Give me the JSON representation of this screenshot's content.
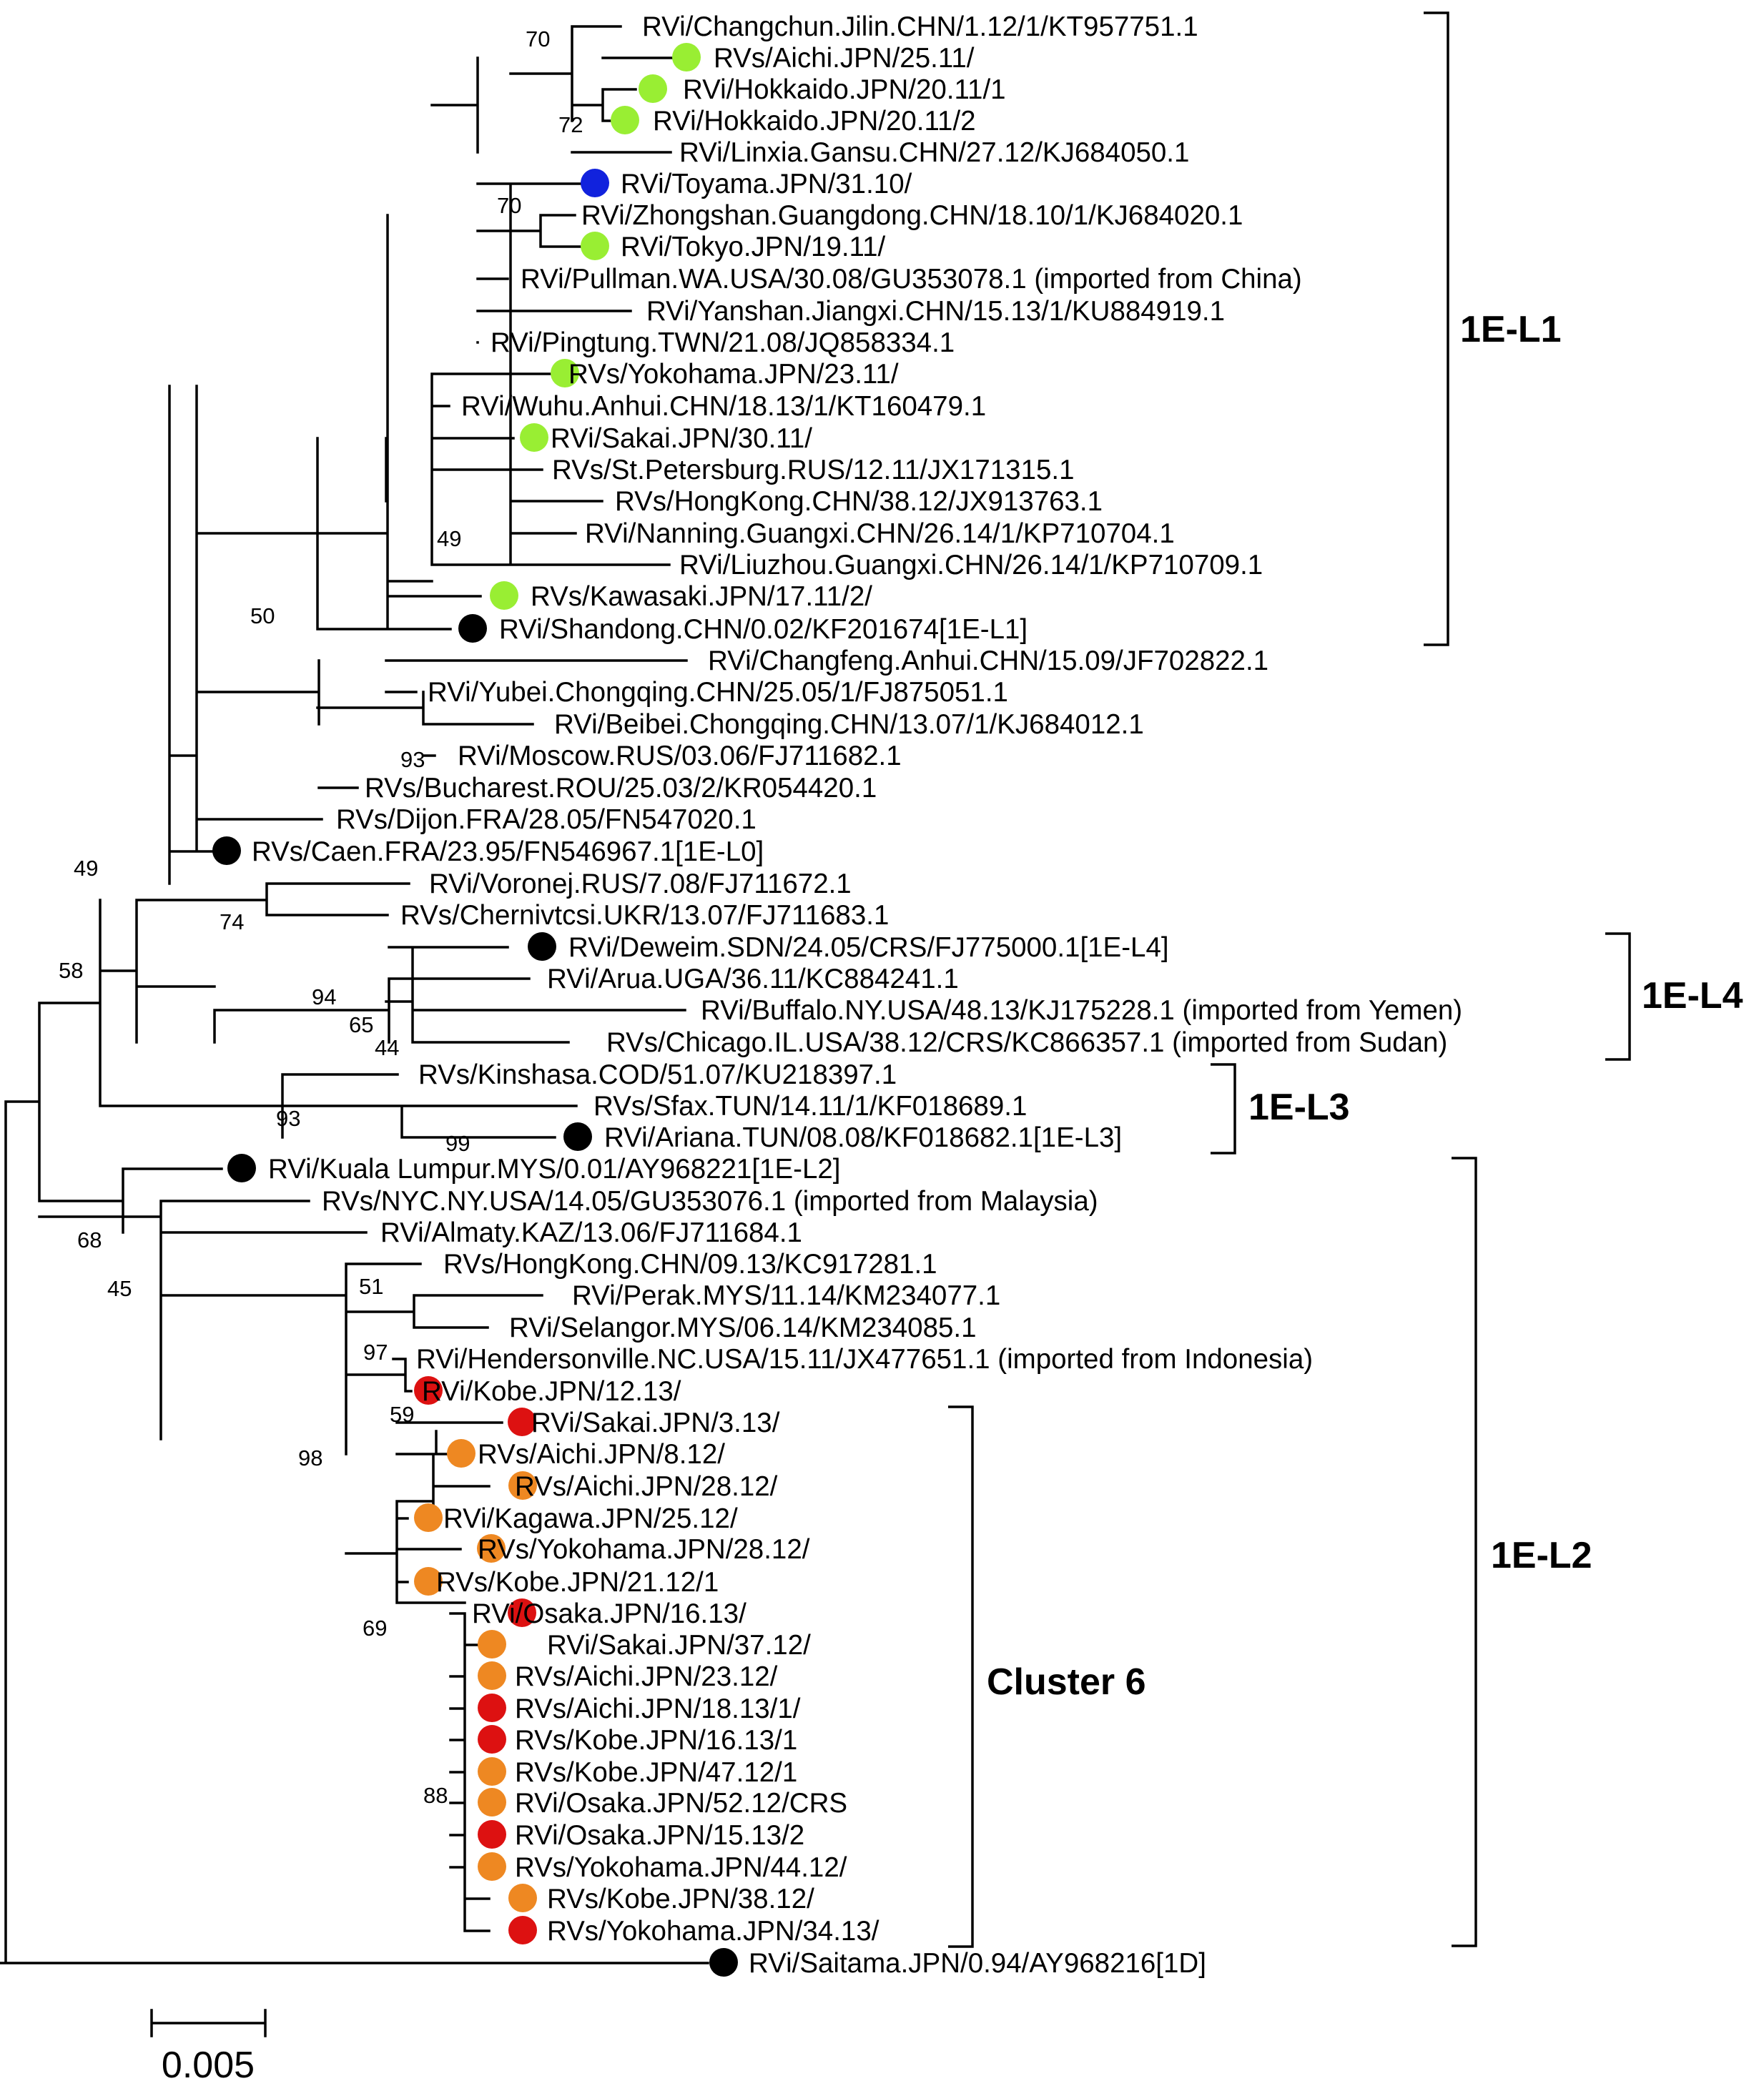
{
  "colors": {
    "green": "#99ee33",
    "blue": "#1122dd",
    "black": "#000000",
    "red": "#dd1111",
    "orange": "#ee8822"
  },
  "leaves": [
    {
      "label": "RVi/Changchun.Jilin.CHN/1.12/1/KT957751.1",
      "dot": ""
    },
    {
      "label": "RVs/Aichi.JPN/25.11/",
      "dot": "green"
    },
    {
      "label": "RVi/Hokkaido.JPN/20.11/1",
      "dot": "green"
    },
    {
      "label": "RVi/Hokkaido.JPN/20.11/2",
      "dot": "green"
    },
    {
      "label": "RVi/Linxia.Gansu.CHN/27.12/KJ684050.1",
      "dot": ""
    },
    {
      "label": "RVi/Toyama.JPN/31.10/",
      "dot": "blue"
    },
    {
      "label": "RVi/Zhongshan.Guangdong.CHN/18.10/1/KJ684020.1",
      "dot": ""
    },
    {
      "label": "RVi/Tokyo.JPN/19.11/",
      "dot": "green"
    },
    {
      "label": "RVi/Pullman.WA.USA/30.08/GU353078.1 (imported from China)",
      "dot": ""
    },
    {
      "label": "RVi/Yanshan.Jiangxi.CHN/15.13/1/KU884919.1",
      "dot": ""
    },
    {
      "label": "RVi/Pingtung.TWN/21.08/JQ858334.1",
      "dot": ""
    },
    {
      "label": "RVs/Yokohama.JPN/23.11/",
      "dot": "green"
    },
    {
      "label": "RVi/Wuhu.Anhui.CHN/18.13/1/KT160479.1",
      "dot": ""
    },
    {
      "label": "RVi/Sakai.JPN/30.11/",
      "dot": "green"
    },
    {
      "label": "RVs/St.Petersburg.RUS/12.11/JX171315.1",
      "dot": ""
    },
    {
      "label": "RVs/HongKong.CHN/38.12/JX913763.1",
      "dot": ""
    },
    {
      "label": "RVi/Nanning.Guangxi.CHN/26.14/1/KP710704.1",
      "dot": ""
    },
    {
      "label": "RVi/Liuzhou.Guangxi.CHN/26.14/1/KP710709.1",
      "dot": ""
    },
    {
      "label": "RVs/Kawasaki.JPN/17.11/2/",
      "dot": "green"
    },
    {
      "label": "RVi/Shandong.CHN/0.02/KF201674[1E-L1]",
      "dot": "black"
    },
    {
      "label": "RVi/Changfeng.Anhui.CHN/15.09/JF702822.1",
      "dot": ""
    },
    {
      "label": "RVi/Yubei.Chongqing.CHN/25.05/1/FJ875051.1",
      "dot": ""
    },
    {
      "label": "RVi/Beibei.Chongqing.CHN/13.07/1/KJ684012.1",
      "dot": ""
    },
    {
      "label": "RVi/Moscow.RUS/03.06/FJ711682.1",
      "dot": ""
    },
    {
      "label": "RVs/Bucharest.ROU/25.03/2/KR054420.1",
      "dot": ""
    },
    {
      "label": "RVs/Dijon.FRA/28.05/FN547020.1",
      "dot": ""
    },
    {
      "label": "RVs/Caen.FRA/23.95/FN546967.1[1E-L0]",
      "dot": "black"
    },
    {
      "label": "RVi/Voronej.RUS/7.08/FJ711672.1",
      "dot": ""
    },
    {
      "label": "RVs/Chernivtcsi.UKR/13.07/FJ711683.1",
      "dot": ""
    },
    {
      "label": "RVi/Deweim.SDN/24.05/CRS/FJ775000.1[1E-L4]",
      "dot": "black"
    },
    {
      "label": "RVi/Arua.UGA/36.11/KC884241.1",
      "dot": ""
    },
    {
      "label": "RVi/Buffalo.NY.USA/48.13/KJ175228.1 (imported from Yemen)",
      "dot": ""
    },
    {
      "label": "RVs/Chicago.IL.USA/38.12/CRS/KC866357.1 (imported from Sudan)",
      "dot": ""
    },
    {
      "label": "RVs/Kinshasa.COD/51.07/KU218397.1",
      "dot": ""
    },
    {
      "label": "RVs/Sfax.TUN/14.11/1/KF018689.1",
      "dot": ""
    },
    {
      "label": "RVi/Ariana.TUN/08.08/KF018682.1[1E-L3]",
      "dot": "black"
    },
    {
      "label": "RVi/Kuala Lumpur.MYS/0.01/AY968221[1E-L2]",
      "dot": "black"
    },
    {
      "label": "RVs/NYC.NY.USA/14.05/GU353076.1 (imported from Malaysia)",
      "dot": ""
    },
    {
      "label": "RVi/Almaty.KAZ/13.06/FJ711684.1",
      "dot": ""
    },
    {
      "label": "RVs/HongKong.CHN/09.13/KC917281.1",
      "dot": ""
    },
    {
      "label": "RVi/Perak.MYS/11.14/KM234077.1",
      "dot": ""
    },
    {
      "label": "RVi/Selangor.MYS/06.14/KM234085.1",
      "dot": ""
    },
    {
      "label": "RVi/Hendersonville.NC.USA/15.11/JX477651.1 (imported from Indonesia)",
      "dot": ""
    },
    {
      "label": "RVi/Kobe.JPN/12.13/",
      "dot": "red"
    },
    {
      "label": "RVi/Sakai.JPN/3.13/",
      "dot": "red"
    },
    {
      "label": "RVs/Aichi.JPN/8.12/",
      "dot": "orange"
    },
    {
      "label": "RVs/Aichi.JPN/28.12/",
      "dot": "orange"
    },
    {
      "label": "RVi/Kagawa.JPN/25.12/",
      "dot": "orange"
    },
    {
      "label": "RVs/Yokohama.JPN/28.12/",
      "dot": "orange"
    },
    {
      "label": "RVs/Kobe.JPN/21.12/1",
      "dot": "orange"
    },
    {
      "label": "RVi/Osaka.JPN/16.13/",
      "dot": "red"
    },
    {
      "label": "RVi/Sakai.JPN/37.12/",
      "dot": "orange"
    },
    {
      "label": "RVs/Aichi.JPN/23.12/",
      "dot": "orange"
    },
    {
      "label": "RVs/Aichi.JPN/18.13/1/",
      "dot": "red"
    },
    {
      "label": "RVs/Kobe.JPN/16.13/1",
      "dot": "red"
    },
    {
      "label": "RVs/Kobe.JPN/47.12/1",
      "dot": "orange"
    },
    {
      "label": "RVi/Osaka.JPN/52.12/CRS",
      "dot": "orange"
    },
    {
      "label": "RVi/Osaka.JPN/15.13/2",
      "dot": "red"
    },
    {
      "label": "RVs/Yokohama.JPN/44.12/",
      "dot": "orange"
    },
    {
      "label": "RVs/Kobe.JPN/38.12/",
      "dot": "orange"
    },
    {
      "label": "RVs/Yokohama.JPN/34.13/",
      "dot": "red"
    },
    {
      "label": "RVi/Saitama.JPN/0.94/AY968216[1D]",
      "dot": "black"
    }
  ],
  "bootstrap": [
    "70",
    "72",
    "70",
    "49",
    "50",
    "93",
    "49",
    "74",
    "58",
    "94",
    "65",
    "44",
    "93",
    "99",
    "68",
    "45",
    "51",
    "97",
    "59",
    "98",
    "69",
    "88"
  ],
  "clades": {
    "l1": "1E-L1",
    "l4": "1E-L4",
    "l3": "1E-L3",
    "l2": "1E-L2",
    "cluster6": "Cluster 6"
  },
  "scale": {
    "label": "0.005"
  }
}
